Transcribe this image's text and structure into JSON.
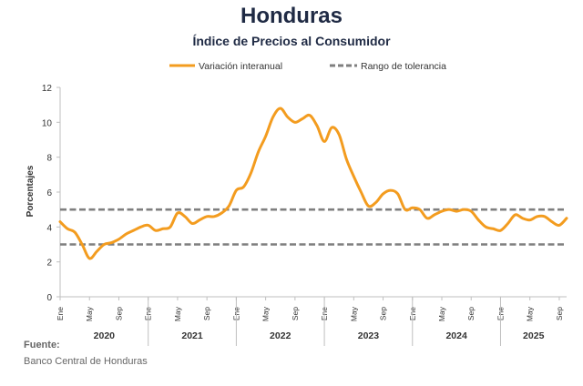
{
  "title": "Honduras",
  "subtitle": "Índice de Precios al Consumidor",
  "legend": {
    "series_label": "Variación interanual",
    "band_label": "Rango de tolerancia"
  },
  "source": {
    "label": "Fuente:",
    "text": "Banco Central de Honduras"
  },
  "colors": {
    "series": "#f39c1f",
    "band": "#7f7f7f",
    "axis": "#bfbfbf",
    "text": "#1f2a44"
  },
  "chart_data": {
    "type": "line",
    "ylabel": "Porcentajes",
    "xlabel": "",
    "ylim": [
      0,
      12
    ],
    "yticks": [
      0,
      2,
      4,
      6,
      8,
      10,
      12
    ],
    "grid": false,
    "legend_position": "top",
    "month_ticks": [
      "Ene",
      "May",
      "Sep",
      "Ene",
      "May",
      "Sep",
      "Ene",
      "May",
      "Sep",
      "Ene",
      "May",
      "Sep",
      "Ene",
      "May",
      "Sep",
      "Ene",
      "May",
      "Sep"
    ],
    "years": [
      "2020",
      "2021",
      "2022",
      "2023",
      "2024",
      "2025"
    ],
    "start": "2020-01",
    "tolerance_band": {
      "lower": 3,
      "upper": 5
    },
    "series": [
      {
        "name": "Variación interanual",
        "values": [
          4.3,
          3.9,
          3.7,
          3.0,
          2.2,
          2.6,
          3.0,
          3.1,
          3.3,
          3.6,
          3.8,
          4.0,
          4.1,
          3.8,
          3.9,
          4.0,
          4.8,
          4.6,
          4.2,
          4.4,
          4.6,
          4.6,
          4.8,
          5.2,
          6.1,
          6.3,
          7.1,
          8.3,
          9.2,
          10.3,
          10.8,
          10.3,
          10.0,
          10.2,
          10.4,
          9.8,
          8.9,
          9.7,
          9.3,
          7.9,
          6.9,
          6.0,
          5.2,
          5.4,
          5.9,
          6.1,
          5.9,
          5.0,
          5.1,
          5.0,
          4.5,
          4.7,
          4.9,
          5.0,
          4.9,
          5.0,
          4.9,
          4.4,
          4.0,
          3.9,
          3.8,
          4.2,
          4.7,
          4.5,
          4.4,
          4.6,
          4.6,
          4.3,
          4.1,
          4.5
        ]
      }
    ]
  }
}
